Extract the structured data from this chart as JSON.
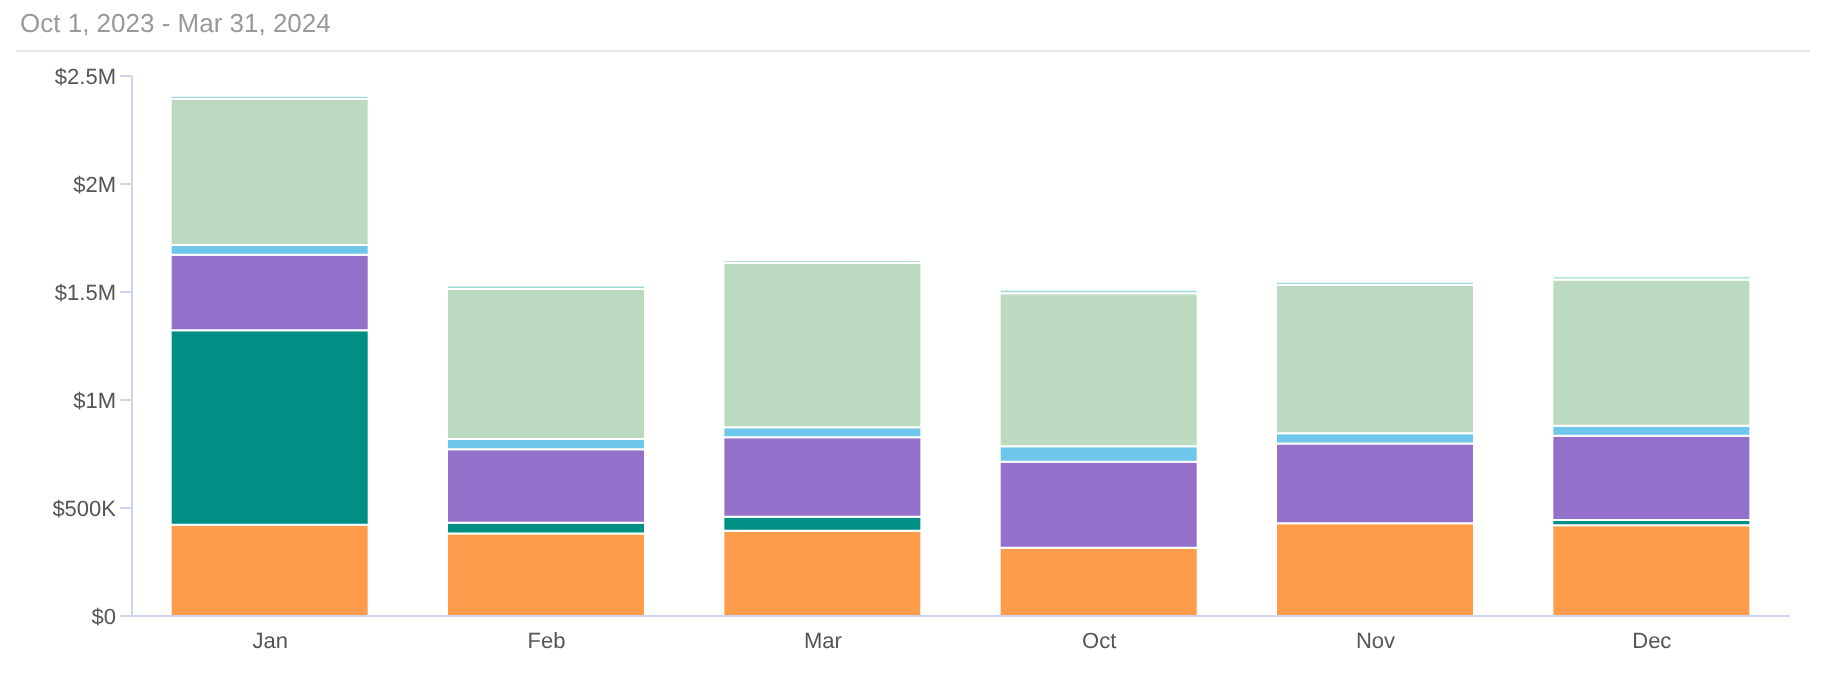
{
  "chart_data": {
    "type": "bar",
    "title": "Oct 1, 2023 - Mar 31, 2024",
    "stacked": true,
    "categories": [
      "Jan",
      "Feb",
      "Mar",
      "Oct",
      "Nov",
      "Dec"
    ],
    "series": [
      {
        "color": "#ff9c4b",
        "values": [
          423000,
          382000,
          395000,
          316000,
          429000,
          420000
        ]
      },
      {
        "color": "#008f84",
        "values": [
          900000,
          50000,
          65000,
          0,
          0,
          25000
        ]
      },
      {
        "color": "#9370c9",
        "values": [
          350000,
          340000,
          367000,
          398000,
          370000,
          390000
        ]
      },
      {
        "color": "#6ec6ea",
        "values": [
          45000,
          47000,
          47000,
          72000,
          47000,
          46000
        ]
      },
      {
        "color": "#bcdabf",
        "values": [
          675000,
          695000,
          760000,
          708000,
          686000,
          677000
        ]
      },
      {
        "color": "#a0d8d0",
        "values": [
          15000,
          16000,
          13000,
          16000,
          16000,
          15000
        ]
      }
    ],
    "ylim": [
      0,
      2500000
    ],
    "yticks": [
      {
        "value": 0,
        "label": "$0"
      },
      {
        "value": 500000,
        "label": "$500K"
      },
      {
        "value": 1000000,
        "label": "$1M"
      },
      {
        "value": 1500000,
        "label": "$1.5M"
      },
      {
        "value": 2000000,
        "label": "$2M"
      },
      {
        "value": 2500000,
        "label": "$2.5M"
      }
    ],
    "grid": false,
    "legend": false
  }
}
